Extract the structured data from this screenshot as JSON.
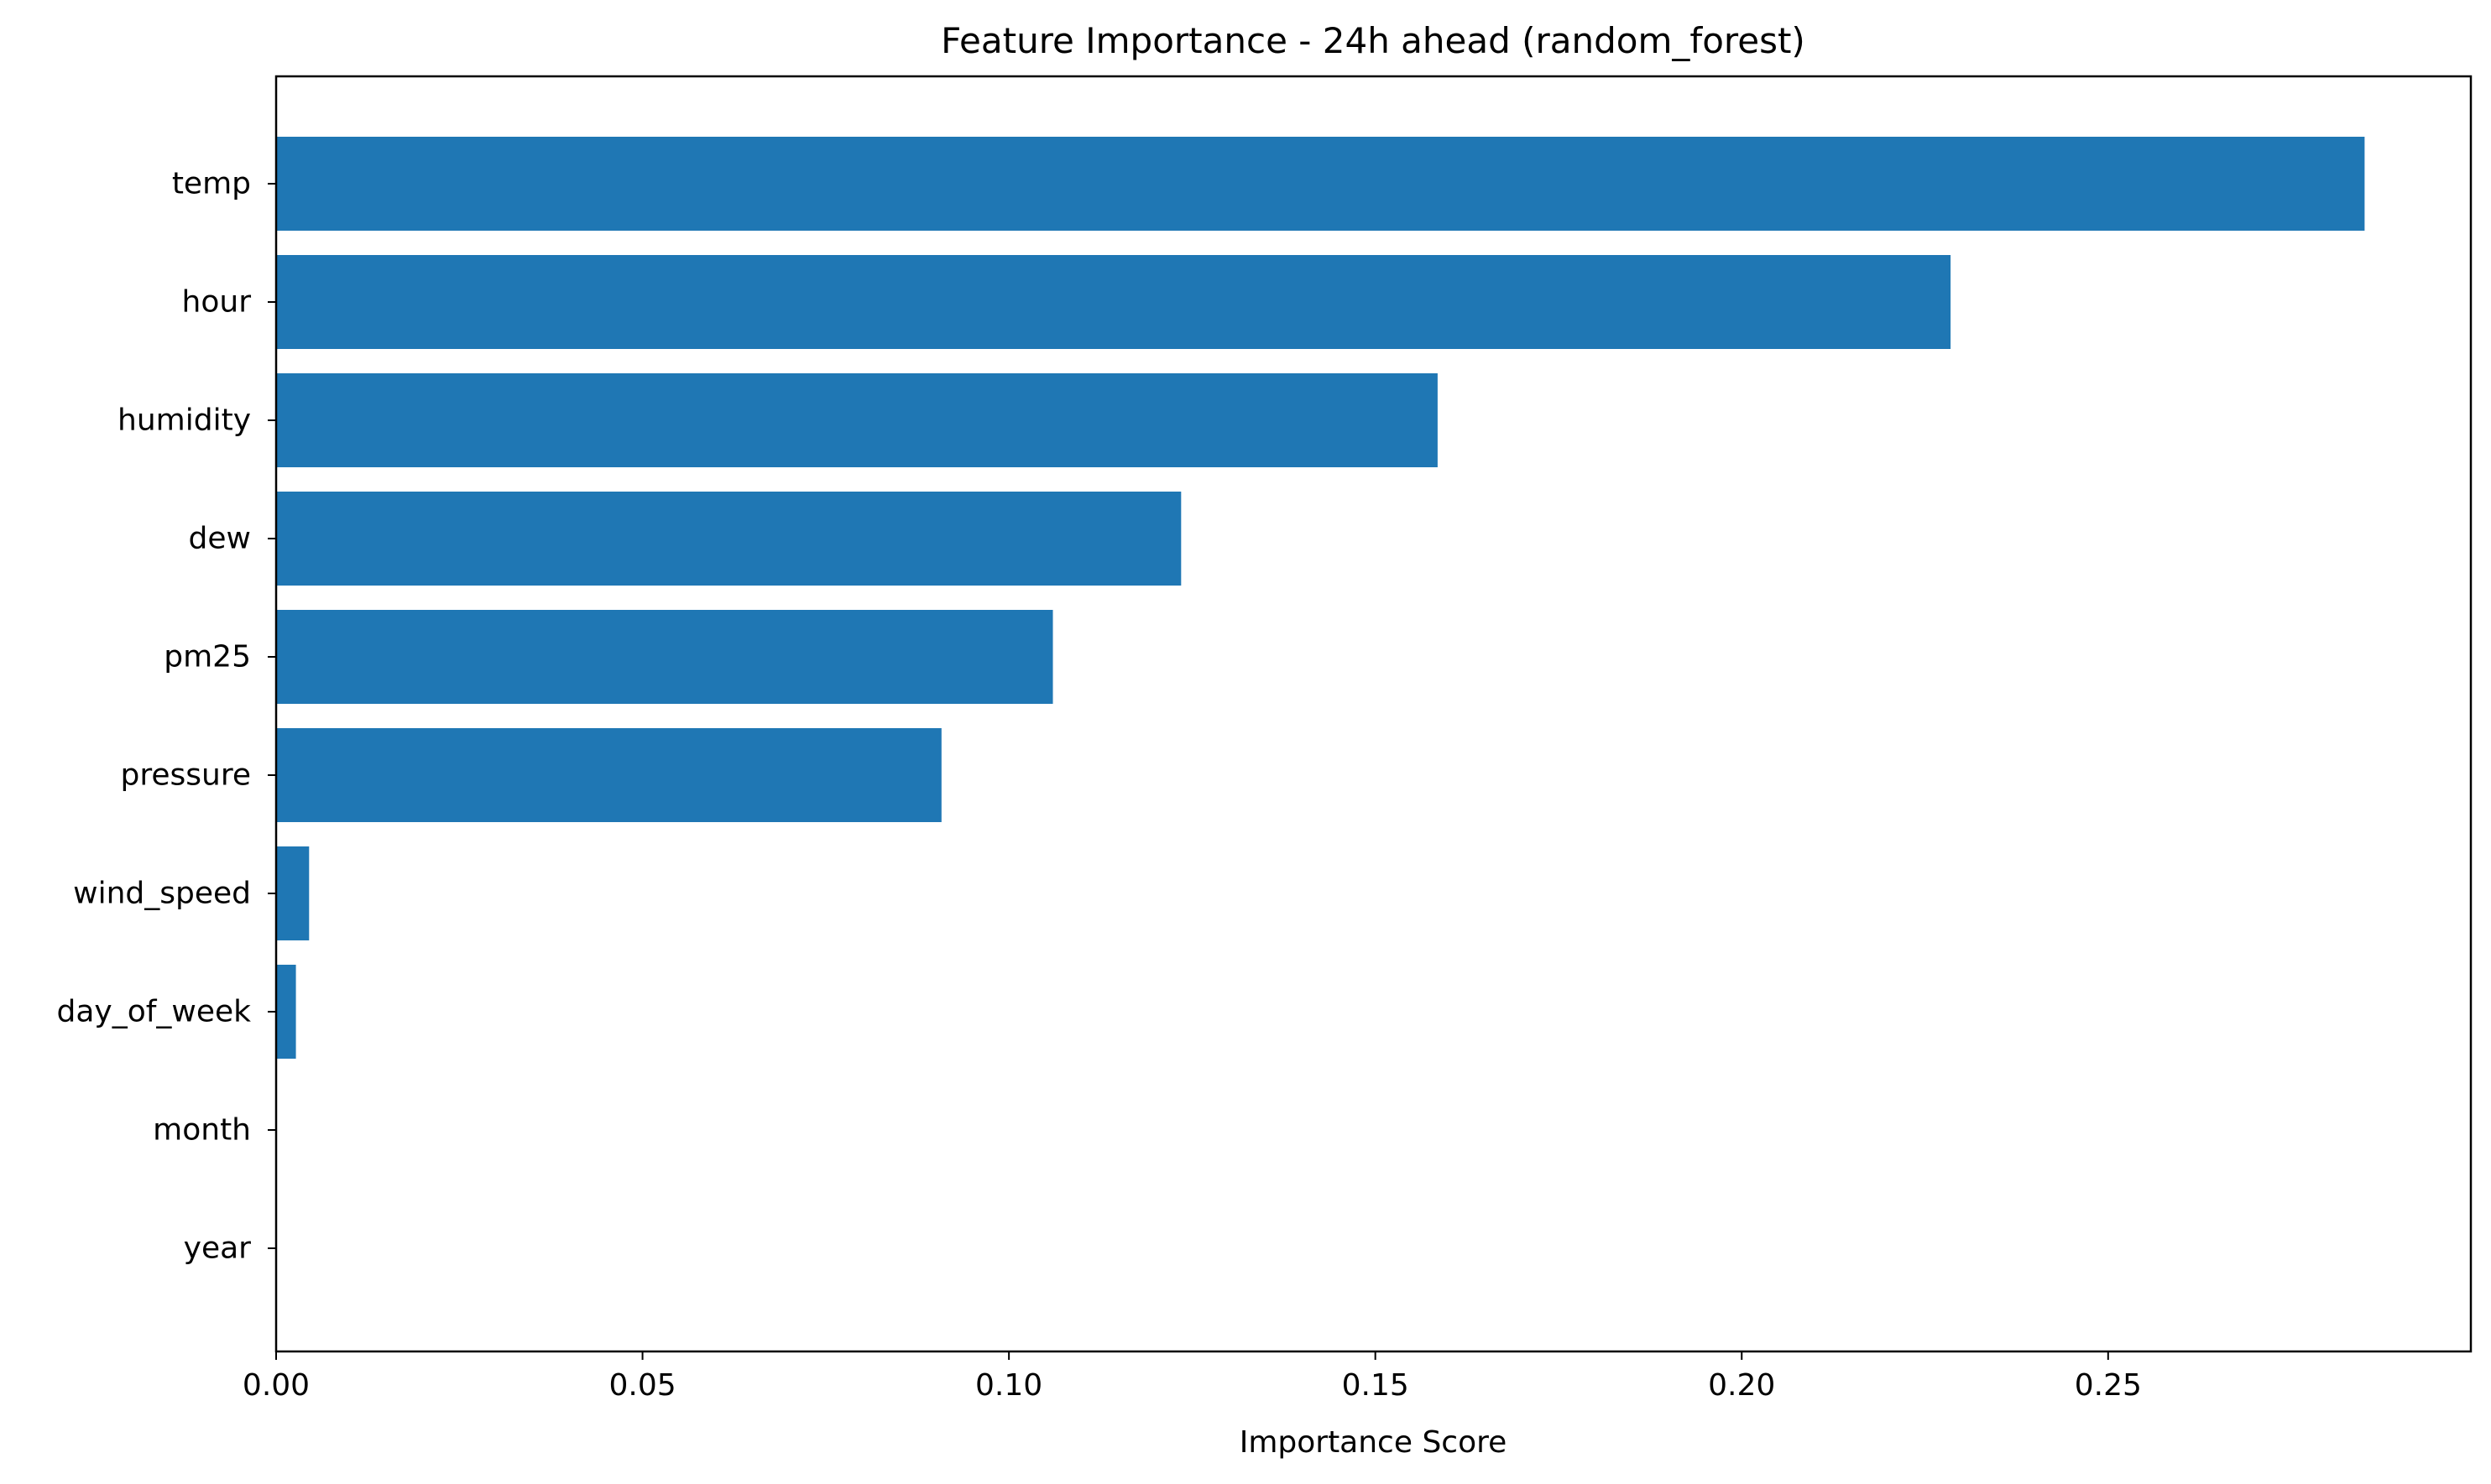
{
  "chart_data": {
    "type": "bar",
    "orientation": "horizontal",
    "title": "Feature Importance - 24h ahead (random_forest)",
    "xlabel": "Importance Score",
    "ylabel": "",
    "categories": [
      "temp",
      "hour",
      "humidity",
      "dew",
      "pm25",
      "pressure",
      "wind_speed",
      "day_of_week",
      "month",
      "year"
    ],
    "values": [
      0.285,
      0.2285,
      0.1585,
      0.1235,
      0.106,
      0.0908,
      0.0045,
      0.0027,
      0.0,
      0.0
    ],
    "xlim": [
      0,
      0.2995
    ],
    "xticks": [
      0.0,
      0.05,
      0.1,
      0.15,
      0.2,
      0.25
    ],
    "xtick_labels": [
      "0.00",
      "0.05",
      "0.10",
      "0.15",
      "0.20",
      "0.25"
    ],
    "bar_color": "#1f77b4",
    "grid": false,
    "legend": false
  }
}
